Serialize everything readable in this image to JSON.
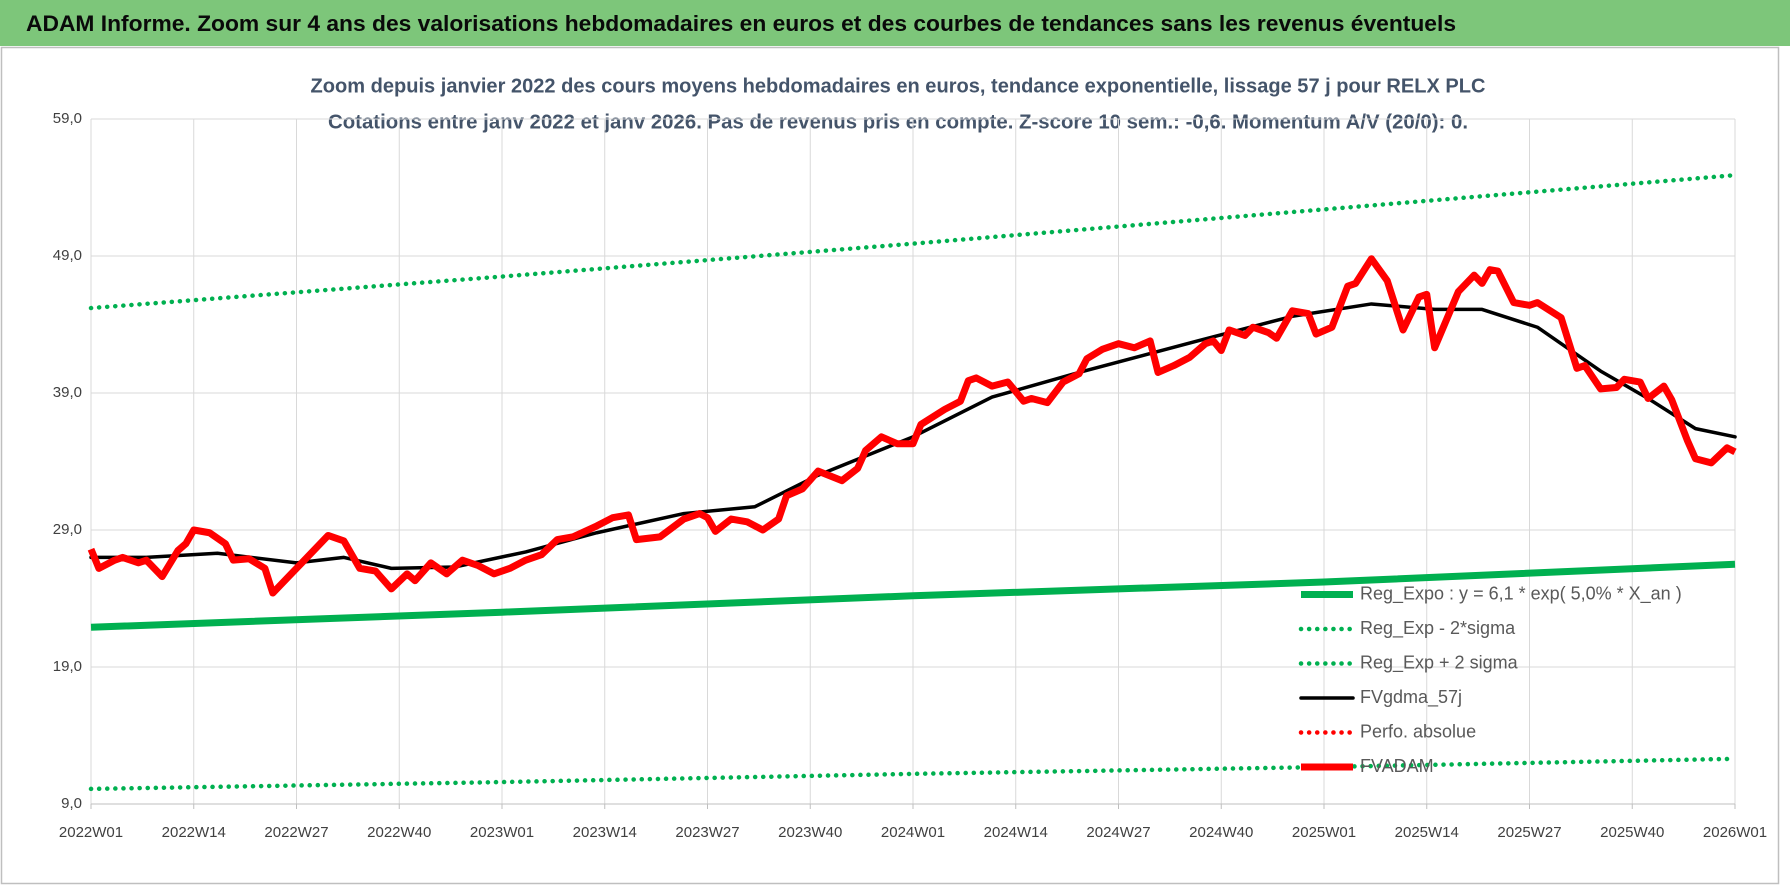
{
  "chart_data": {
    "type": "line",
    "header": "ADAM Informe. Zoom sur 4 ans des valorisations hebdomadaires en euros et des courbes de tendances sans les revenus éventuels",
    "title": "Zoom depuis janvier 2022 des cours moyens hebdomadaires en euros, tendance exponentielle, lissage 57 j pour RELX PLC",
    "subtitle": "Cotations entre janv 2022 et janv 2026. Pas de revenus pris en compte. Z-score 10 sem.: -0,6. Momentum A/V (20/0): 0.",
    "xlim": [
      0,
      208
    ],
    "xticks": [
      {
        "value": 0,
        "label": "2022W01"
      },
      {
        "value": 13,
        "label": "2022W14"
      },
      {
        "value": 26,
        "label": "2022W27"
      },
      {
        "value": 39,
        "label": "2022W40"
      },
      {
        "value": 52,
        "label": "2023W01"
      },
      {
        "value": 65,
        "label": "2023W14"
      },
      {
        "value": 78,
        "label": "2023W27"
      },
      {
        "value": 91,
        "label": "2023W40"
      },
      {
        "value": 104,
        "label": "2024W01"
      },
      {
        "value": 117,
        "label": "2024W14"
      },
      {
        "value": 130,
        "label": "2024W27"
      },
      {
        "value": 143,
        "label": "2024W40"
      },
      {
        "value": 156,
        "label": "2025W01"
      },
      {
        "value": 169,
        "label": "2025W14"
      },
      {
        "value": 182,
        "label": "2025W27"
      },
      {
        "value": 195,
        "label": "2025W40"
      },
      {
        "value": 208,
        "label": "2026W01"
      }
    ],
    "ylim": [
      9,
      59
    ],
    "yticks": [
      {
        "value": 9,
        "label": "9,0"
      },
      {
        "value": 19,
        "label": "19,0"
      },
      {
        "value": 29,
        "label": "29,0"
      },
      {
        "value": 39,
        "label": "39,0"
      },
      {
        "value": 49,
        "label": "49,0"
      },
      {
        "value": 59,
        "label": "59,0"
      }
    ],
    "grid": true,
    "legend": "lower right",
    "series": [
      {
        "name": "Reg_Expo : y = 6,1 * exp( 5,0% *  X_an )",
        "color": "#00b050",
        "style": "thick",
        "x": [
          0,
          52,
          104,
          156,
          208
        ],
        "values": [
          21.9,
          23.0,
          24.2,
          25.2,
          26.5
        ]
      },
      {
        "name": "Reg_Exp - 2*sigma",
        "color": "#00b050",
        "style": "dotted",
        "x": [
          0,
          52,
          104,
          156,
          208
        ],
        "values": [
          10.1,
          10.6,
          11.2,
          11.7,
          12.3
        ]
      },
      {
        "name": "Reg_Exp + 2 sigma",
        "color": "#00b050",
        "style": "dotted",
        "x": [
          0,
          52,
          104,
          156,
          208
        ],
        "values": [
          45.2,
          47.5,
          49.9,
          52.4,
          54.9
        ]
      },
      {
        "name": "FVgdma_57j",
        "color": "#000000",
        "style": "solid",
        "x": [
          0,
          7,
          16,
          26,
          32,
          38,
          46,
          55,
          64,
          75,
          84,
          92,
          104,
          114,
          125,
          140,
          152,
          162,
          170,
          176,
          183,
          191,
          197,
          203,
          208
        ],
        "values": [
          27.0,
          27.0,
          27.3,
          26.6,
          27.0,
          26.2,
          26.3,
          27.4,
          28.8,
          30.2,
          30.7,
          33.0,
          35.8,
          38.7,
          40.5,
          42.8,
          44.6,
          45.5,
          45.1,
          45.1,
          43.8,
          40.6,
          38.6,
          36.4,
          35.8
        ]
      },
      {
        "name": "Perfo. absolue",
        "color": "#ff0000",
        "style": "dotted",
        "x": [],
        "values": []
      },
      {
        "name": "FVADAM",
        "color": "#ff0000",
        "style": "thick",
        "x": [
          0,
          1,
          3,
          4,
          6,
          7,
          9,
          11,
          12,
          13,
          15,
          17,
          18,
          20,
          22,
          23,
          25,
          27,
          30,
          32,
          34,
          36,
          38,
          40,
          41,
          43,
          45,
          47,
          49,
          51,
          53,
          55,
          57,
          59,
          61,
          64,
          66,
          68,
          69,
          72,
          75,
          77,
          78,
          79,
          81,
          83,
          85,
          87,
          88,
          90,
          92,
          95,
          97,
          98,
          100,
          102,
          104,
          105,
          108,
          110,
          111,
          112,
          114,
          116,
          118,
          119,
          121,
          123,
          125,
          126,
          128,
          130,
          132,
          134,
          135,
          137,
          139,
          141,
          142,
          143,
          144,
          146,
          147,
          149,
          150,
          152,
          154,
          155,
          157,
          159,
          160,
          162,
          164,
          166,
          168,
          169,
          170,
          173,
          175,
          176,
          177,
          178,
          180,
          182,
          183,
          186,
          188,
          189,
          191,
          193,
          194,
          196,
          197,
          199,
          200,
          202,
          203,
          205,
          207,
          208
        ],
        "values": [
          27.6,
          26.2,
          26.8,
          27.0,
          26.6,
          26.8,
          25.6,
          27.5,
          28.0,
          29.0,
          28.8,
          28.0,
          26.8,
          26.9,
          26.2,
          24.4,
          25.6,
          26.8,
          28.6,
          28.2,
          26.2,
          26.0,
          24.7,
          25.8,
          25.3,
          26.6,
          25.8,
          26.8,
          26.4,
          25.8,
          26.2,
          26.8,
          27.2,
          28.3,
          28.5,
          29.3,
          29.9,
          30.1,
          28.3,
          28.5,
          29.8,
          30.2,
          29.9,
          28.9,
          29.8,
          29.6,
          29.0,
          29.8,
          31.5,
          32.0,
          33.3,
          32.6,
          33.5,
          34.8,
          35.8,
          35.3,
          35.3,
          36.7,
          37.8,
          38.4,
          39.9,
          40.1,
          39.5,
          39.8,
          38.4,
          38.6,
          38.3,
          39.8,
          40.4,
          41.5,
          42.2,
          42.6,
          42.3,
          42.8,
          40.5,
          41.0,
          41.6,
          42.6,
          42.8,
          42.1,
          43.6,
          43.2,
          43.8,
          43.4,
          43.0,
          45.0,
          44.8,
          43.3,
          43.8,
          46.8,
          47.0,
          48.8,
          47.2,
          43.6,
          46.0,
          46.2,
          42.3,
          46.4,
          47.6,
          47.0,
          48.0,
          47.9,
          45.6,
          45.4,
          45.6,
          44.5,
          40.8,
          41.0,
          39.3,
          39.4,
          40.0,
          39.8,
          38.6,
          39.5,
          38.5,
          35.5,
          34.2,
          33.9,
          35.0,
          34.7
        ]
      }
    ]
  }
}
